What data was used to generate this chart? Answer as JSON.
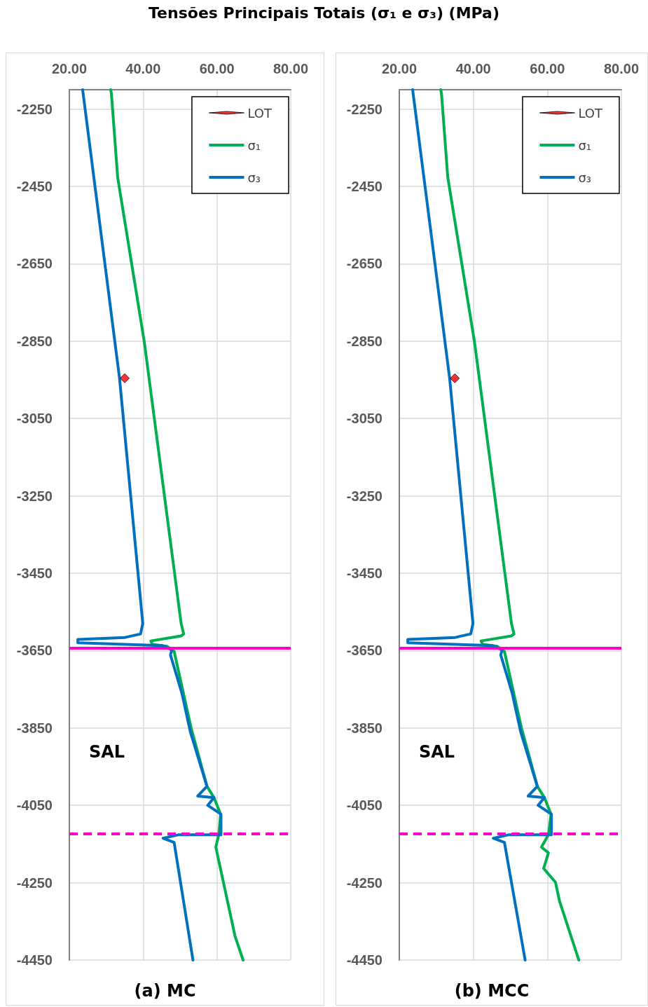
{
  "chart_data": [
    {
      "type": "line",
      "title": "Tensões Principais Totais (σ₁ e σ₃) (MPa)",
      "xlim": [
        20,
        80
      ],
      "xticks": [
        {
          "value": 20,
          "label": "20.00"
        },
        {
          "value": 40,
          "label": "40.00"
        },
        {
          "value": 60,
          "label": "60.00"
        },
        {
          "value": 80,
          "label": "80.00"
        }
      ],
      "ylim": [
        -4450,
        -2200
      ],
      "yticks": [
        -4450,
        -4250,
        -4050,
        -3850,
        -3650,
        -3450,
        -3250,
        -3050,
        -2850,
        -2650,
        -2450,
        -2250
      ],
      "grid": true,
      "legend": "top right",
      "marker": "none",
      "line_style": "solid",
      "series": [
        {
          "name": "LOT",
          "type": "scatter",
          "marker": "diamond",
          "color": "#ff0000",
          "x": [
            35.0
          ],
          "values": [
            -2946
          ]
        },
        {
          "name": "σ₁",
          "color": "#00b050",
          "x": [
            31.2,
            31.4,
            33.1,
            40.3,
            43.1,
            50.3,
            51.0,
            50.3,
            42.1,
            42.5,
            46.5,
            48.4,
            53.0,
            57.3,
            59.2,
            61.0,
            60.5,
            59.7,
            64.9,
            67.1
          ],
          "values": [
            -2200,
            -2210,
            -2427,
            -2851,
            -3055,
            -3580,
            -3607,
            -3612,
            -3625,
            -3634,
            -3639,
            -3652,
            -3850,
            -4001,
            -4030,
            -4073,
            -4126,
            -4158,
            -4388,
            -4450
          ]
        },
        {
          "name": "σ₃",
          "color": "#0070c0",
          "x": [
            23.6,
            33.6,
            39.9,
            39.3,
            35.1,
            22.3,
            22.3,
            45.0,
            47.8,
            47.4,
            50.5,
            52.8,
            57.3,
            54.8,
            59.2,
            57.5,
            61.1,
            61.1,
            49.7,
            45.4,
            48.4,
            53.5
          ],
          "values": [
            -2200,
            -2946,
            -3580,
            -3607,
            -3616,
            -3621,
            -3630,
            -3637,
            -3648,
            -3661,
            -3760,
            -3860,
            -4001,
            -4026,
            -4030,
            -4050,
            -4073,
            -4126,
            -4126,
            -4135,
            -4146,
            -4450
          ]
        }
      ],
      "ref_lines": [
        {
          "axis": "y",
          "value": -3643,
          "label": null,
          "color": "#ff00cc",
          "line_style": "solid"
        },
        {
          "axis": "y",
          "value": -4124,
          "label": null,
          "color": "#ff00cc",
          "line_style": "dashed"
        }
      ],
      "annotations": [
        "SAL",
        "(a) MC"
      ]
    },
    {
      "type": "line",
      "xlim": [
        20,
        80
      ],
      "xticks": [
        {
          "value": 20,
          "label": "20.00"
        },
        {
          "value": 40,
          "label": "40.00"
        },
        {
          "value": 60,
          "label": "60.00"
        },
        {
          "value": 80,
          "label": "80.00"
        }
      ],
      "ylim": [
        -4450,
        -2200
      ],
      "yticks": [
        -4450,
        -4250,
        -4050,
        -3850,
        -3650,
        -3450,
        -3250,
        -3050,
        -2850,
        -2650,
        -2450,
        -2250
      ],
      "grid": true,
      "legend": "top right",
      "marker": "none",
      "line_style": "solid",
      "series": [
        {
          "name": "LOT",
          "type": "scatter",
          "marker": "diamond",
          "color": "#ff0000",
          "x": [
            35.0
          ],
          "values": [
            -2946
          ]
        },
        {
          "name": "σ₁",
          "color": "#00b050",
          "x": [
            31.2,
            31.4,
            33.1,
            40.3,
            43.1,
            50.3,
            51.0,
            50.3,
            42.1,
            42.5,
            46.5,
            48.4,
            53.0,
            57.3,
            59.2,
            61.0,
            60.3,
            58.4,
            60.3,
            59.0,
            62.2,
            63.3,
            68.5
          ],
          "values": [
            -2200,
            -2210,
            -2427,
            -2851,
            -3055,
            -3580,
            -3607,
            -3612,
            -3625,
            -3634,
            -3639,
            -3652,
            -3850,
            -4001,
            -4030,
            -4073,
            -4126,
            -4158,
            -4173,
            -4213,
            -4249,
            -4298,
            -4450
          ]
        },
        {
          "name": "σ₃",
          "color": "#0070c0",
          "x": [
            23.6,
            33.6,
            39.9,
            39.3,
            35.1,
            22.3,
            22.3,
            45.0,
            47.8,
            47.4,
            50.5,
            52.8,
            57.3,
            54.8,
            59.2,
            57.5,
            61.1,
            61.1,
            49.7,
            45.4,
            48.4,
            54.0
          ],
          "values": [
            -2200,
            -2946,
            -3580,
            -3607,
            -3616,
            -3621,
            -3630,
            -3637,
            -3648,
            -3661,
            -3760,
            -3860,
            -4001,
            -4026,
            -4030,
            -4050,
            -4073,
            -4126,
            -4126,
            -4135,
            -4146,
            -4450
          ]
        }
      ],
      "ref_lines": [
        {
          "axis": "y",
          "value": -3643,
          "label": null,
          "color": "#ff00cc",
          "line_style": "solid"
        },
        {
          "axis": "y",
          "value": -4124,
          "label": null,
          "color": "#ff00cc",
          "line_style": "dashed"
        }
      ],
      "annotations": [
        "SAL",
        "(b) MCC"
      ]
    }
  ]
}
